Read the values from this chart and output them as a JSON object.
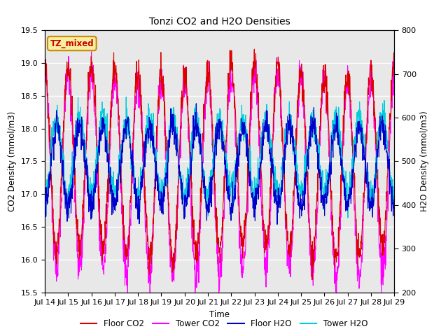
{
  "title": "Tonzi CO2 and H2O Densities",
  "xlabel": "Time",
  "ylabel_left": "CO2 Density (mmol/m3)",
  "ylabel_right": "H2O Density (mmol/m3)",
  "annotation_text": "TZ_mixed",
  "annotation_facecolor": "#f5f0a0",
  "annotation_edgecolor": "#cc8800",
  "annotation_textcolor": "#cc0000",
  "x_tick_labels": [
    "Jul 14",
    "Jul 15",
    "Jul 16",
    "Jul 17",
    "Jul 18",
    "Jul 19",
    "Jul 20",
    "Jul 21",
    "Jul 22",
    "Jul 23",
    "Jul 24",
    "Jul 25",
    "Jul 26",
    "Jul 27",
    "Jul 28",
    "Jul 29"
  ],
  "ylim_left": [
    15.5,
    19.5
  ],
  "ylim_right": [
    200,
    800
  ],
  "colors": {
    "floor_co2": "#dd0000",
    "tower_co2": "#ff00ff",
    "floor_h2o": "#0000cc",
    "tower_h2o": "#00ccdd"
  },
  "legend_labels": [
    "Floor CO2",
    "Tower CO2",
    "Floor H2O",
    "Tower H2O"
  ],
  "background_color": "#e8e8e8",
  "figure_color": "#ffffff",
  "n_days": 15,
  "seed": 42
}
